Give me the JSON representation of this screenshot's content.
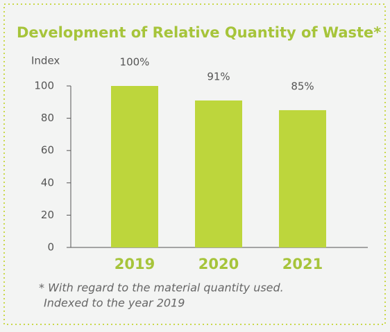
{
  "chart_data": {
    "type": "bar",
    "title": "Development of Relative Quantity of Waste*",
    "ylabel": "Index",
    "categories": [
      "2019",
      "2020",
      "2021"
    ],
    "values": [
      100,
      91,
      85
    ],
    "value_labels": [
      "100%",
      "91%",
      "85%"
    ],
    "color": "#bdd63c",
    "ylim": [
      0,
      100
    ],
    "yticks": [
      0,
      20,
      40,
      60,
      80,
      100
    ],
    "footnote": [
      "* With regard to the material quantity used.",
      "Indexed to the year 2019"
    ]
  }
}
